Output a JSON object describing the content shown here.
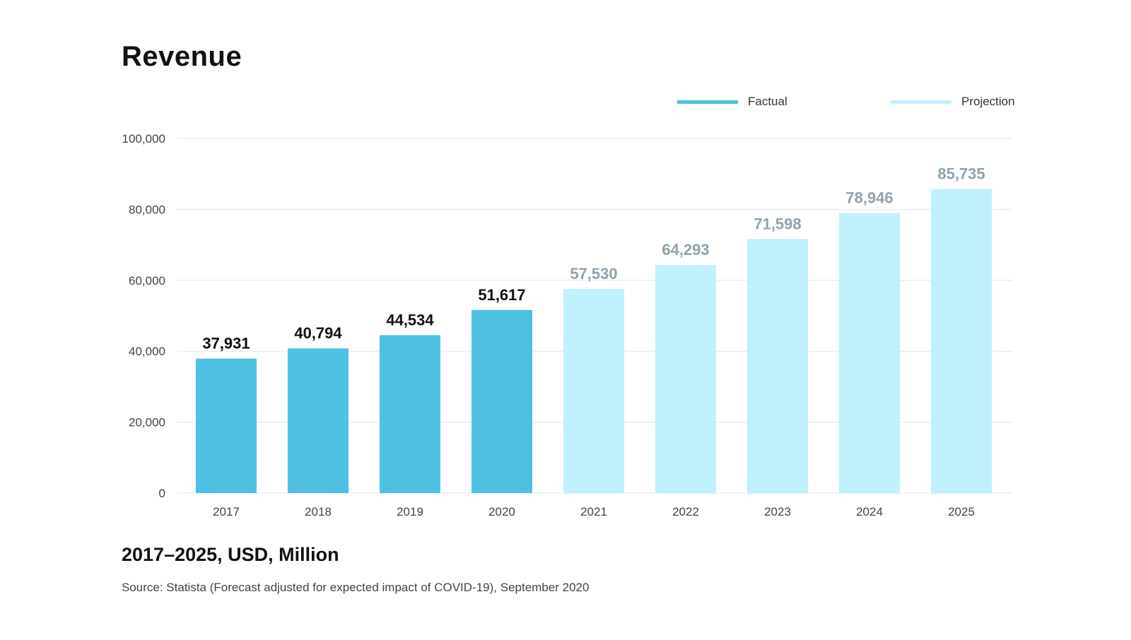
{
  "title": "Revenue",
  "subtitle": "2017–2025, USD, Million",
  "source": "Source: Statista (Forecast adjusted for expected impact of COVID-19), September 2020",
  "legend": {
    "factual": "Factual",
    "projection": "Projection"
  },
  "colors": {
    "factual": "#50c0e2",
    "projection": "#bff0fc",
    "factual_label": "#111111",
    "projection_label": "#8fa3ad",
    "grid": "#dfe6ea",
    "axis_text": "#444444"
  },
  "chart_data": {
    "type": "bar",
    "title": "Revenue",
    "xlabel": "",
    "ylabel": "",
    "ylim": [
      0,
      100000
    ],
    "yticks": [
      0,
      20000,
      40000,
      60000,
      80000,
      100000
    ],
    "ytick_labels": [
      "0",
      "20,000",
      "40,000",
      "60,000",
      "80,000",
      "100,000"
    ],
    "categories": [
      "2017",
      "2018",
      "2019",
      "2020",
      "2021",
      "2022",
      "2023",
      "2024",
      "2025"
    ],
    "values": [
      37931,
      40794,
      44534,
      51617,
      57530,
      64293,
      71598,
      78946,
      85735
    ],
    "value_labels": [
      "37,931",
      "40,794",
      "44,534",
      "51,617",
      "57,530",
      "64,293",
      "71,598",
      "78,946",
      "85,735"
    ],
    "kind": [
      "Factual",
      "Factual",
      "Factual",
      "Factual",
      "Projection",
      "Projection",
      "Projection",
      "Projection",
      "Projection"
    ],
    "legend_position": "top-right"
  }
}
